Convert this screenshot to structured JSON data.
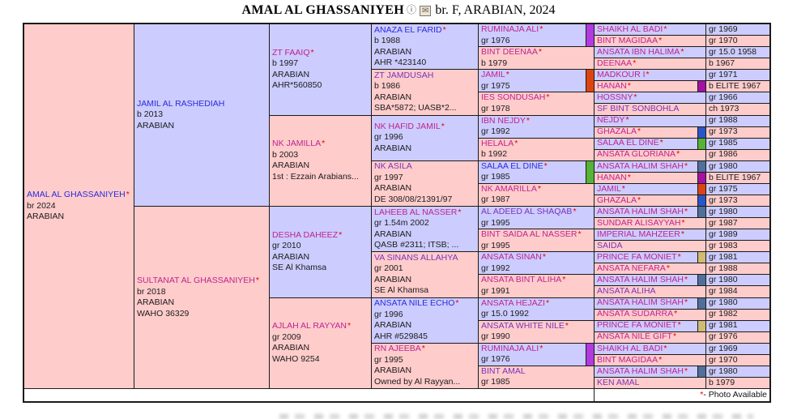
{
  "header": {
    "title": "AMAL AL GHASSANIYEH",
    "info_icon": "ⓘ",
    "mail_icon": "✉",
    "subtitle": "br. F, ARABIAN, 2024"
  },
  "footer": {
    "star": "*",
    "note": " - Photo Available"
  },
  "legend": {
    "star_symbol": "*"
  },
  "colors": {
    "male_bg": "#ccccfe",
    "female_bg": "#fecccb",
    "link_blue": "#2a2ae0",
    "link_purple": "#7a33bb",
    "link_magenta": "#bf2390",
    "star_red": "#e80000",
    "border": "#1b1b1b",
    "swatches": {
      "violet": "#b23ae0",
      "orange": "#dd4510",
      "green": "#55b335",
      "plum": "#a510a5",
      "blue": "#2a55c8",
      "slate": "#50709b",
      "tan": "#cfbb72"
    }
  },
  "pedigree": {
    "generations": [
      [
        {
          "name": "AMAL AL GHASSANIYEH",
          "star": true,
          "color": "blue",
          "sex": "F",
          "details": [
            "br 2024",
            "ARABIAN"
          ]
        }
      ],
      [
        {
          "name": "JAMIL AL RASHEDIAH",
          "star": false,
          "color": "blue",
          "sex": "M",
          "details": [
            "b 2013",
            "ARABIAN"
          ]
        },
        {
          "name": "SULTANAT AL GHASSANIYEH",
          "star": true,
          "color": "magenta",
          "sex": "F",
          "details": [
            "br 2018",
            "ARABIAN",
            "WAHO 36329"
          ]
        }
      ],
      [
        {
          "name": "ZT FAAIQ",
          "star": true,
          "color": "magenta",
          "sex": "M",
          "details": [
            "b 1997",
            "ARABIAN",
            "AHR*560850"
          ]
        },
        {
          "name": "NK JAMILLA",
          "star": true,
          "color": "magenta",
          "sex": "F",
          "details": [
            "b 2003",
            "ARABIAN",
            "1st : Ezzain Arabians..."
          ]
        },
        {
          "name": "DESHA DAHEEZ",
          "star": true,
          "color": "magenta",
          "sex": "M",
          "details": [
            "gr 2010",
            "ARABIAN",
            "SE Al Khamsa"
          ]
        },
        {
          "name": "AJLAH AL RAYYAN",
          "star": true,
          "color": "magenta",
          "sex": "F",
          "details": [
            "gr 2009",
            "ARABIAN",
            "WAHO 9254"
          ]
        }
      ],
      [
        {
          "name": "ANAZA EL FARID",
          "star": true,
          "color": "blue",
          "sex": "M",
          "details": [
            "b 1988",
            "ARABIAN",
            "AHR *423140"
          ]
        },
        {
          "name": "ZT JAMDUSAH",
          "star": false,
          "color": "purple",
          "sex": "F",
          "details": [
            "b 1986",
            "ARABIAN",
            "SBA*5872; UASB*2..."
          ]
        },
        {
          "name": "NK HAFID JAMIL",
          "star": true,
          "color": "magenta",
          "sex": "M",
          "details": [
            "gr 1996",
            "ARABIAN"
          ]
        },
        {
          "name": "NK ASILA",
          "star": false,
          "color": "purple",
          "sex": "F",
          "details": [
            "gr 1997",
            "ARABIAN",
            "DE 308/08/21391/97"
          ]
        },
        {
          "name": "LAHEEB AL NASSER",
          "star": true,
          "color": "magenta",
          "sex": "M",
          "details": [
            "gr 1.54m 2002",
            "ARABIAN",
            "QASB #2311; ITSB; ..."
          ]
        },
        {
          "name": "VA SINANS ALLAHYA",
          "star": false,
          "color": "purple",
          "sex": "F",
          "details": [
            "gr 2001",
            "ARABIAN",
            "SE Al Khamsa"
          ]
        },
        {
          "name": "ANSATA NILE ECHO",
          "star": true,
          "color": "blue",
          "sex": "M",
          "details": [
            "gr 1996",
            "ARABIAN",
            "AHR #529845"
          ]
        },
        {
          "name": "RN AJEEBA",
          "star": true,
          "color": "magenta",
          "sex": "F",
          "details": [
            "gr 1995",
            "ARABIAN",
            "Owned by Al Rayyan..."
          ]
        }
      ],
      [
        {
          "name": "RUMINAJA ALI",
          "star": true,
          "color": "magenta",
          "sex": "M",
          "details": [
            "gr 1976"
          ],
          "swatch": "violet"
        },
        {
          "name": "BINT DEENAA",
          "star": true,
          "color": "magenta",
          "sex": "F",
          "details": [
            "b 1979"
          ]
        },
        {
          "name": "JAMIL",
          "star": true,
          "color": "magenta",
          "sex": "M",
          "details": [
            "gr 1975"
          ],
          "swatch": "orange"
        },
        {
          "name": "IES SONDUSAH",
          "star": true,
          "color": "magenta",
          "sex": "F",
          "details": [
            "gr 1978"
          ]
        },
        {
          "name": "IBN NEJDY",
          "star": true,
          "color": "magenta",
          "sex": "M",
          "details": [
            "gr 1992"
          ]
        },
        {
          "name": "HELALA",
          "star": true,
          "color": "magenta",
          "sex": "F",
          "details": [
            "b 1992"
          ]
        },
        {
          "name": "SALAA EL DINE",
          "star": true,
          "color": "blue",
          "sex": "M",
          "details": [
            "gr 1985"
          ],
          "swatch": "green"
        },
        {
          "name": "NK AMARILLA",
          "star": true,
          "color": "magenta",
          "sex": "F",
          "details": [
            "gr 1987"
          ]
        },
        {
          "name": "AL ADEED AL SHAQAB",
          "star": true,
          "color": "purple",
          "sex": "M",
          "details": [
            "gr 1995"
          ]
        },
        {
          "name": "BINT SAIDA AL NASSER",
          "star": true,
          "color": "magenta",
          "sex": "F",
          "details": [
            "gr 1995"
          ]
        },
        {
          "name": "ANSATA SINAN",
          "star": true,
          "color": "magenta",
          "sex": "M",
          "details": [
            "gr 1992"
          ]
        },
        {
          "name": "ANSATA BINT ALIHA",
          "star": true,
          "color": "magenta",
          "sex": "F",
          "details": [
            "gr 1991"
          ]
        },
        {
          "name": "ANSATA HEJAZI",
          "star": true,
          "color": "magenta",
          "sex": "M",
          "details": [
            "gr 15.0 1992"
          ]
        },
        {
          "name": "ANSATA WHITE NILE",
          "star": true,
          "color": "purple",
          "sex": "F",
          "details": [
            "gr 1990"
          ]
        },
        {
          "name": "RUMINAJA ALI",
          "star": true,
          "color": "magenta",
          "sex": "M",
          "details": [
            "gr 1976"
          ],
          "swatch": "violet"
        },
        {
          "name": "BINT AMAL",
          "star": false,
          "color": "purple",
          "sex": "F",
          "details": [
            "gr 1985"
          ]
        }
      ],
      [
        {
          "name": "SHAIKH AL BADI",
          "star": true,
          "color": "magenta",
          "sex": "M",
          "year": "gr 1969"
        },
        {
          "name": "BINT MAGIDAA",
          "star": true,
          "color": "magenta",
          "sex": "F",
          "year": "gr 1970"
        },
        {
          "name": "ANSATA IBN HALIMA",
          "star": true,
          "color": "magenta",
          "sex": "M",
          "year": "gr 15.0 1958"
        },
        {
          "name": "DEENAA",
          "star": true,
          "color": "magenta",
          "sex": "F",
          "year": "b 1967"
        },
        {
          "name": "MADKOUR I",
          "star": true,
          "color": "magenta",
          "sex": "M",
          "year": "gr 1971"
        },
        {
          "name": "HANAN",
          "star": true,
          "color": "magenta",
          "sex": "F",
          "year": "b ELITE 1967",
          "swatch": "plum"
        },
        {
          "name": "HOSSNY",
          "star": true,
          "color": "magenta",
          "sex": "M",
          "year": "gr 1966"
        },
        {
          "name": "SF BINT SONBOHLA",
          "star": false,
          "color": "purple",
          "sex": "F",
          "year": "ch 1973"
        },
        {
          "name": "NEJDY",
          "star": true,
          "color": "magenta",
          "sex": "M",
          "year": "gr 1988"
        },
        {
          "name": "GHAZALA",
          "star": true,
          "color": "magenta",
          "sex": "F",
          "year": "gr 1973",
          "swatch": "blue"
        },
        {
          "name": "SALAA EL DINE",
          "star": true,
          "color": "magenta",
          "sex": "M",
          "year": "gr 1985",
          "swatch": "green"
        },
        {
          "name": "ANSATA GLORIANA",
          "star": true,
          "color": "magenta",
          "sex": "F",
          "year": "gr 1986"
        },
        {
          "name": "ANSATA HALIM SHAH",
          "star": true,
          "color": "magenta",
          "sex": "M",
          "year": "gr 1980",
          "swatch": "slate"
        },
        {
          "name": "HANAN",
          "star": true,
          "color": "magenta",
          "sex": "F",
          "year": "b ELITE 1967",
          "swatch": "plum"
        },
        {
          "name": "JAMIL",
          "star": true,
          "color": "magenta",
          "sex": "M",
          "year": "gr 1975",
          "swatch": "orange"
        },
        {
          "name": "GHAZALA",
          "star": true,
          "color": "magenta",
          "sex": "F",
          "year": "gr 1973",
          "swatch": "blue"
        },
        {
          "name": "ANSATA HALIM SHAH",
          "star": true,
          "color": "magenta",
          "sex": "M",
          "year": "gr 1980",
          "swatch": "slate"
        },
        {
          "name": "SUNDAR ALISAYYAH",
          "star": true,
          "color": "magenta",
          "sex": "F",
          "year": "gr 1987"
        },
        {
          "name": "IMPERIAL MAHZEER",
          "star": true,
          "color": "magenta",
          "sex": "M",
          "year": "gr 1989"
        },
        {
          "name": "SAIDA",
          "star": false,
          "color": "purple",
          "sex": "F",
          "year": "gr 1983"
        },
        {
          "name": "PRINCE FA MONIET",
          "star": true,
          "color": "magenta",
          "sex": "M",
          "year": "gr 1981",
          "swatch": "tan"
        },
        {
          "name": "ANSATA NEFARA",
          "star": true,
          "color": "magenta",
          "sex": "F",
          "year": "gr 1988"
        },
        {
          "name": "ANSATA HALIM SHAH",
          "star": true,
          "color": "magenta",
          "sex": "M",
          "year": "gr 1980",
          "swatch": "slate"
        },
        {
          "name": "ANSATA ALIHA",
          "star": false,
          "color": "purple",
          "sex": "F",
          "year": "gr 1984"
        },
        {
          "name": "ANSATA HALIM SHAH",
          "star": true,
          "color": "magenta",
          "sex": "M",
          "year": "gr 1980",
          "swatch": "slate"
        },
        {
          "name": "ANSATA SUDARRA",
          "star": true,
          "color": "magenta",
          "sex": "F",
          "year": "gr 1982"
        },
        {
          "name": "PRINCE FA MONIET",
          "star": true,
          "color": "magenta",
          "sex": "M",
          "year": "gr 1981",
          "swatch": "tan"
        },
        {
          "name": "ANSATA NILE GIFT",
          "star": true,
          "color": "magenta",
          "sex": "F",
          "year": "gr 1976"
        },
        {
          "name": "SHAIKH AL BADI",
          "star": true,
          "color": "magenta",
          "sex": "M",
          "year": "gr 1969"
        },
        {
          "name": "BINT MAGIDAA",
          "star": true,
          "color": "magenta",
          "sex": "F",
          "year": "gr 1970"
        },
        {
          "name": "ANSATA HALIM SHAH",
          "star": true,
          "color": "magenta",
          "sex": "M",
          "year": "gr 1980",
          "swatch": "slate"
        },
        {
          "name": "KEN AMAL",
          "star": false,
          "color": "purple",
          "sex": "F",
          "year": "b 1979"
        }
      ]
    ]
  }
}
